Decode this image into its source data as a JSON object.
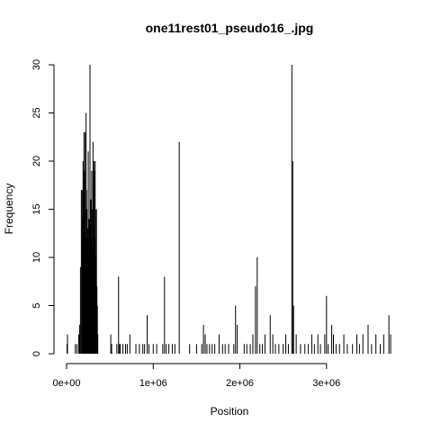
{
  "chart_data": {
    "type": "histogram-spikes",
    "title": "one11rest01_pseudo16_.jpg",
    "xlabel": "Position",
    "ylabel": "Frequency",
    "xlim": [
      0,
      3750000
    ],
    "ylim": [
      0,
      30
    ],
    "x_ticks": [
      {
        "value": 0,
        "label": "0e+00"
      },
      {
        "value": 1000000,
        "label": "1e+06"
      },
      {
        "value": 2000000,
        "label": "2e+06"
      },
      {
        "value": 3000000,
        "label": "3e+06"
      }
    ],
    "y_ticks": [
      {
        "value": 0,
        "label": "0"
      },
      {
        "value": 5,
        "label": "5"
      },
      {
        "value": 10,
        "label": "10"
      },
      {
        "value": 15,
        "label": "15"
      },
      {
        "value": 20,
        "label": "20"
      },
      {
        "value": 25,
        "label": "25"
      },
      {
        "value": 30,
        "label": "30"
      }
    ],
    "bin_width": 10000,
    "points": [
      [
        5000,
        1
      ],
      [
        10000,
        2
      ],
      [
        100000,
        1
      ],
      [
        120000,
        1
      ],
      [
        140000,
        2
      ],
      [
        150000,
        3
      ],
      [
        160000,
        9
      ],
      [
        170000,
        17
      ],
      [
        180000,
        17
      ],
      [
        185000,
        14
      ],
      [
        190000,
        20
      ],
      [
        195000,
        18
      ],
      [
        200000,
        23
      ],
      [
        205000,
        19
      ],
      [
        210000,
        15
      ],
      [
        215000,
        23
      ],
      [
        220000,
        12
      ],
      [
        225000,
        25
      ],
      [
        230000,
        17
      ],
      [
        235000,
        15
      ],
      [
        240000,
        13
      ],
      [
        245000,
        12
      ],
      [
        250000,
        21
      ],
      [
        255000,
        10
      ],
      [
        260000,
        14
      ],
      [
        265000,
        12
      ],
      [
        270000,
        30
      ],
      [
        275000,
        13
      ],
      [
        280000,
        16
      ],
      [
        285000,
        12
      ],
      [
        290000,
        19
      ],
      [
        295000,
        11
      ],
      [
        300000,
        15
      ],
      [
        305000,
        22
      ],
      [
        310000,
        18
      ],
      [
        315000,
        20
      ],
      [
        320000,
        19
      ],
      [
        325000,
        12
      ],
      [
        330000,
        20
      ],
      [
        335000,
        15
      ],
      [
        340000,
        10
      ],
      [
        345000,
        15
      ],
      [
        350000,
        7
      ],
      [
        355000,
        5
      ],
      [
        360000,
        2
      ],
      [
        510000,
        2
      ],
      [
        520000,
        1
      ],
      [
        580000,
        1
      ],
      [
        600000,
        8
      ],
      [
        610000,
        1
      ],
      [
        620000,
        1
      ],
      [
        650000,
        1
      ],
      [
        680000,
        1
      ],
      [
        700000,
        1
      ],
      [
        730000,
        2
      ],
      [
        800000,
        1
      ],
      [
        840000,
        1
      ],
      [
        880000,
        1
      ],
      [
        900000,
        1
      ],
      [
        930000,
        4
      ],
      [
        950000,
        1
      ],
      [
        1000000,
        1
      ],
      [
        1040000,
        1
      ],
      [
        1110000,
        1
      ],
      [
        1130000,
        8
      ],
      [
        1150000,
        1
      ],
      [
        1180000,
        1
      ],
      [
        1220000,
        1
      ],
      [
        1250000,
        1
      ],
      [
        1300000,
        22
      ],
      [
        1420000,
        1
      ],
      [
        1500000,
        1
      ],
      [
        1560000,
        1
      ],
      [
        1580000,
        3
      ],
      [
        1600000,
        2
      ],
      [
        1620000,
        1
      ],
      [
        1650000,
        1
      ],
      [
        1680000,
        1
      ],
      [
        1710000,
        1
      ],
      [
        1760000,
        2
      ],
      [
        1800000,
        1
      ],
      [
        1830000,
        1
      ],
      [
        1870000,
        1
      ],
      [
        1930000,
        1
      ],
      [
        1950000,
        5
      ],
      [
        1970000,
        3
      ],
      [
        2050000,
        1
      ],
      [
        2080000,
        1
      ],
      [
        2120000,
        1
      ],
      [
        2150000,
        2
      ],
      [
        2180000,
        7
      ],
      [
        2200000,
        10
      ],
      [
        2230000,
        1
      ],
      [
        2260000,
        1
      ],
      [
        2290000,
        2
      ],
      [
        2350000,
        4
      ],
      [
        2380000,
        2
      ],
      [
        2410000,
        1
      ],
      [
        2450000,
        1
      ],
      [
        2500000,
        1
      ],
      [
        2530000,
        2
      ],
      [
        2560000,
        1
      ],
      [
        2600000,
        30
      ],
      [
        2610000,
        20
      ],
      [
        2620000,
        5
      ],
      [
        2650000,
        2
      ],
      [
        2700000,
        1
      ],
      [
        2750000,
        1
      ],
      [
        2790000,
        1
      ],
      [
        2830000,
        2
      ],
      [
        2860000,
        1
      ],
      [
        2900000,
        2
      ],
      [
        2930000,
        1
      ],
      [
        2980000,
        2
      ],
      [
        3000000,
        6
      ],
      [
        3020000,
        1
      ],
      [
        3060000,
        3
      ],
      [
        3080000,
        2
      ],
      [
        3110000,
        1
      ],
      [
        3150000,
        1
      ],
      [
        3200000,
        2
      ],
      [
        3240000,
        1
      ],
      [
        3300000,
        1
      ],
      [
        3350000,
        2
      ],
      [
        3380000,
        1
      ],
      [
        3420000,
        2
      ],
      [
        3480000,
        3
      ],
      [
        3520000,
        1
      ],
      [
        3570000,
        2
      ],
      [
        3620000,
        1
      ],
      [
        3660000,
        2
      ],
      [
        3720000,
        4
      ],
      [
        3740000,
        2
      ]
    ]
  }
}
